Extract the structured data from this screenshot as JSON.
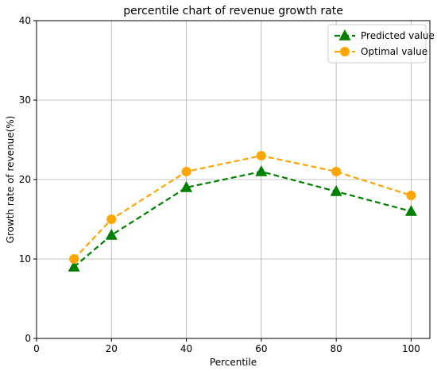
{
  "chart_data": {
    "type": "line",
    "title": "percentile chart of revenue growth rate",
    "xlabel": "Percentile",
    "ylabel": "Growth rate of revenue(%)",
    "x": [
      10,
      20,
      40,
      60,
      80,
      100
    ],
    "xlim": [
      0,
      105
    ],
    "ylim": [
      0,
      40
    ],
    "xticks": [
      0,
      20,
      40,
      60,
      80,
      100
    ],
    "yticks": [
      0,
      10,
      20,
      30,
      40
    ],
    "grid": true,
    "legend_position": "top-right",
    "series": [
      {
        "name": "Predicted value",
        "values": [
          9,
          13,
          19,
          21,
          18.5,
          16
        ],
        "color": "#008000",
        "marker": "triangle-up",
        "line_style": "dashed"
      },
      {
        "name": "Optimal value",
        "values": [
          10,
          15,
          21,
          23,
          21,
          18
        ],
        "color": "#ffa500",
        "marker": "circle",
        "line_style": "dashed"
      }
    ]
  }
}
